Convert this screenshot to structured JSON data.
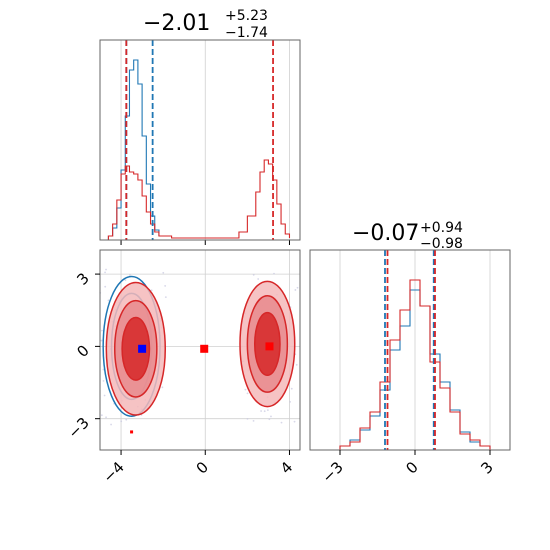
{
  "chart_data": [
    {
      "panel": "marginal-x",
      "type": "histogram",
      "title": {
        "main": "−2.01",
        "sup": "+5.23",
        "sub": "−1.74"
      },
      "xlim": [
        -5,
        4.5
      ],
      "grid": true,
      "series": [
        {
          "color": "#1f77b4",
          "bins": [
            -4.6,
            -4.4,
            -4.2,
            -4.0,
            -3.8,
            -3.6,
            -3.4,
            -3.2,
            -3.0,
            -2.8,
            -2.6,
            -2.4,
            -2.2
          ],
          "counts": [
            0.02,
            0.06,
            0.16,
            0.35,
            0.62,
            0.85,
            0.9,
            0.78,
            0.52,
            0.28,
            0.12,
            0.05,
            0.02
          ]
        },
        {
          "color": "#d62728",
          "bins": [
            -4.6,
            -4.4,
            -4.2,
            -4.0,
            -3.8,
            -3.6,
            -3.4,
            -3.2,
            -3.0,
            -2.8,
            -2.6,
            -2.4,
            -2.2,
            -1.6,
            -1.0,
            1.2,
            1.6,
            2.0,
            2.4,
            2.6,
            2.8,
            3.0,
            3.2,
            3.4,
            3.6,
            3.8,
            4.0
          ],
          "counts": [
            0.02,
            0.08,
            0.2,
            0.33,
            0.37,
            0.34,
            0.33,
            0.3,
            0.22,
            0.14,
            0.08,
            0.04,
            0.02,
            0.01,
            0.01,
            0.01,
            0.04,
            0.12,
            0.24,
            0.34,
            0.4,
            0.38,
            0.3,
            0.18,
            0.08,
            0.03,
            0.01
          ]
        }
      ],
      "quantile_lines": [
        {
          "color": "#1f77b4",
          "x": [
            -3.75,
            -2.5
          ]
        },
        {
          "color": "#d62728",
          "x": [
            -3.75,
            3.22
          ]
        }
      ]
    },
    {
      "panel": "marginal-y",
      "type": "histogram",
      "title": {
        "main": "−0.07",
        "sup": "+0.94",
        "sub": "−0.98"
      },
      "xlim": [
        -4.2,
        3.8
      ],
      "xticks": [
        -3,
        0,
        3
      ],
      "xticklabels": [
        "−3",
        "0",
        "3"
      ],
      "grid": true,
      "series": [
        {
          "color": "#1f77b4",
          "bins": [
            -3.0,
            -2.6,
            -2.2,
            -1.8,
            -1.4,
            -1.0,
            -0.6,
            -0.2,
            0.2,
            0.6,
            1.0,
            1.4,
            1.8,
            2.2,
            2.6,
            3.0
          ],
          "counts": [
            0.02,
            0.05,
            0.1,
            0.17,
            0.3,
            0.5,
            0.62,
            0.8,
            0.72,
            0.48,
            0.34,
            0.2,
            0.09,
            0.04,
            0.02
          ]
        },
        {
          "color": "#d62728",
          "bins": [
            -3.0,
            -2.6,
            -2.2,
            -1.8,
            -1.4,
            -1.0,
            -0.6,
            -0.2,
            0.2,
            0.6,
            1.0,
            1.4,
            1.8,
            2.2,
            2.6,
            3.0
          ],
          "counts": [
            0.02,
            0.04,
            0.11,
            0.19,
            0.34,
            0.55,
            0.7,
            0.85,
            0.72,
            0.44,
            0.31,
            0.19,
            0.08,
            0.05,
            0.02
          ]
        }
      ],
      "quantile_lines": [
        {
          "color": "#1f77b4",
          "x": [
            -1.2,
            0.75
          ]
        },
        {
          "color": "#d62728",
          "x": [
            -1.1,
            0.8
          ]
        }
      ]
    },
    {
      "panel": "joint",
      "type": "scatter",
      "xlim": [
        -5,
        4.5
      ],
      "ylim": [
        -4.3,
        4
      ],
      "xticks": [
        -4,
        0,
        4
      ],
      "xticklabels": [
        "−4",
        "0",
        "4"
      ],
      "yticks": [
        3,
        0,
        -3
      ],
      "yticklabels": [
        "3",
        "0",
        "−3"
      ],
      "grid": true,
      "contours": [
        {
          "color": "#1f77b4",
          "center": [
            -3.5,
            0
          ],
          "radii": [
            [
              0.95,
              2.2
            ],
            [
              1.35,
              2.9
            ]
          ],
          "fill": false
        },
        {
          "color": "#d62728",
          "center": [
            -3.3,
            -0.1
          ],
          "radii": [
            [
              0.65,
              1.3
            ],
            [
              1.0,
              2.0
            ],
            [
              1.4,
              2.75
            ]
          ],
          "fill": true
        },
        {
          "color": "#d62728",
          "center": [
            2.95,
            0.1
          ],
          "radii": [
            [
              0.6,
              1.3
            ],
            [
              0.95,
              2.0
            ],
            [
              1.3,
              2.6
            ]
          ],
          "fill": true
        }
      ],
      "points": [
        {
          "color": "#0000ff",
          "x": -3.0,
          "y": -0.1,
          "marker": "square"
        },
        {
          "color": "#ff0000",
          "x": -0.05,
          "y": -0.1,
          "marker": "square"
        },
        {
          "color": "#ff0000",
          "x": 3.05,
          "y": 0.0,
          "marker": "square"
        },
        {
          "color": "#ff0000",
          "x": -3.5,
          "y": -3.55,
          "marker": "small-square"
        }
      ]
    }
  ]
}
